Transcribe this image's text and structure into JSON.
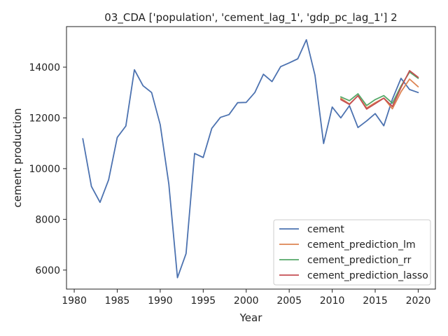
{
  "chart_data": {
    "type": "line",
    "title": "03_CDA ['population', 'cement_lag_1', 'gdp_pc_lag_1'] 2",
    "xlabel": "Year",
    "ylabel": "cement production",
    "xlim": [
      1979.1,
      2022.0
    ],
    "ylim": [
      5250,
      15600
    ],
    "xticks": [
      1980,
      1985,
      1990,
      1995,
      2000,
      2005,
      2010,
      2015,
      2020
    ],
    "yticks": [
      6000,
      8000,
      10000,
      12000,
      14000
    ],
    "grid": false,
    "legend_position": "lower-right",
    "series": [
      {
        "name": "cement",
        "color": "#4c72b0",
        "x": [
          1981,
          1982,
          1983,
          1984,
          1985,
          1986,
          1987,
          1988,
          1989,
          1990,
          1991,
          1992,
          1993,
          1994,
          1995,
          1996,
          1997,
          1998,
          1999,
          2000,
          2001,
          2002,
          2003,
          2004,
          2005,
          2006,
          2007,
          2008,
          2009,
          2010,
          2011,
          2012,
          2013,
          2014,
          2015,
          2016,
          2017,
          2018,
          2019,
          2020
        ],
        "values": [
          11180,
          9300,
          8670,
          9560,
          11230,
          11680,
          13900,
          13270,
          13000,
          11730,
          9390,
          5700,
          6650,
          10600,
          10440,
          11590,
          12020,
          12130,
          12600,
          12610,
          13000,
          13720,
          13430,
          14020,
          14170,
          14330,
          15080,
          13680,
          10990,
          12430,
          12000,
          12480,
          11620,
          11880,
          12170,
          11690,
          12740,
          13560,
          13120,
          13000
        ]
      },
      {
        "name": "cement_prediction_lm",
        "color": "#dd8452",
        "x": [
          2011,
          2012,
          2013,
          2014,
          2015,
          2016,
          2017,
          2018,
          2019,
          2020
        ],
        "values": [
          12770,
          12550,
          12870,
          12390,
          12600,
          12780,
          12360,
          13030,
          13530,
          13230
        ]
      },
      {
        "name": "cement_prediction_rr",
        "color": "#55a868",
        "x": [
          2011,
          2012,
          2013,
          2014,
          2015,
          2016,
          2017,
          2018,
          2019,
          2020
        ],
        "values": [
          12830,
          12680,
          12950,
          12490,
          12720,
          12880,
          12580,
          13260,
          13810,
          13560
        ]
      },
      {
        "name": "cement_prediction_lasso",
        "color": "#c44e52",
        "x": [
          2011,
          2012,
          2013,
          2014,
          2015,
          2016,
          2017,
          2018,
          2019,
          2020
        ],
        "values": [
          12720,
          12530,
          12880,
          12350,
          12560,
          12780,
          12450,
          13200,
          13860,
          13600
        ]
      }
    ]
  }
}
